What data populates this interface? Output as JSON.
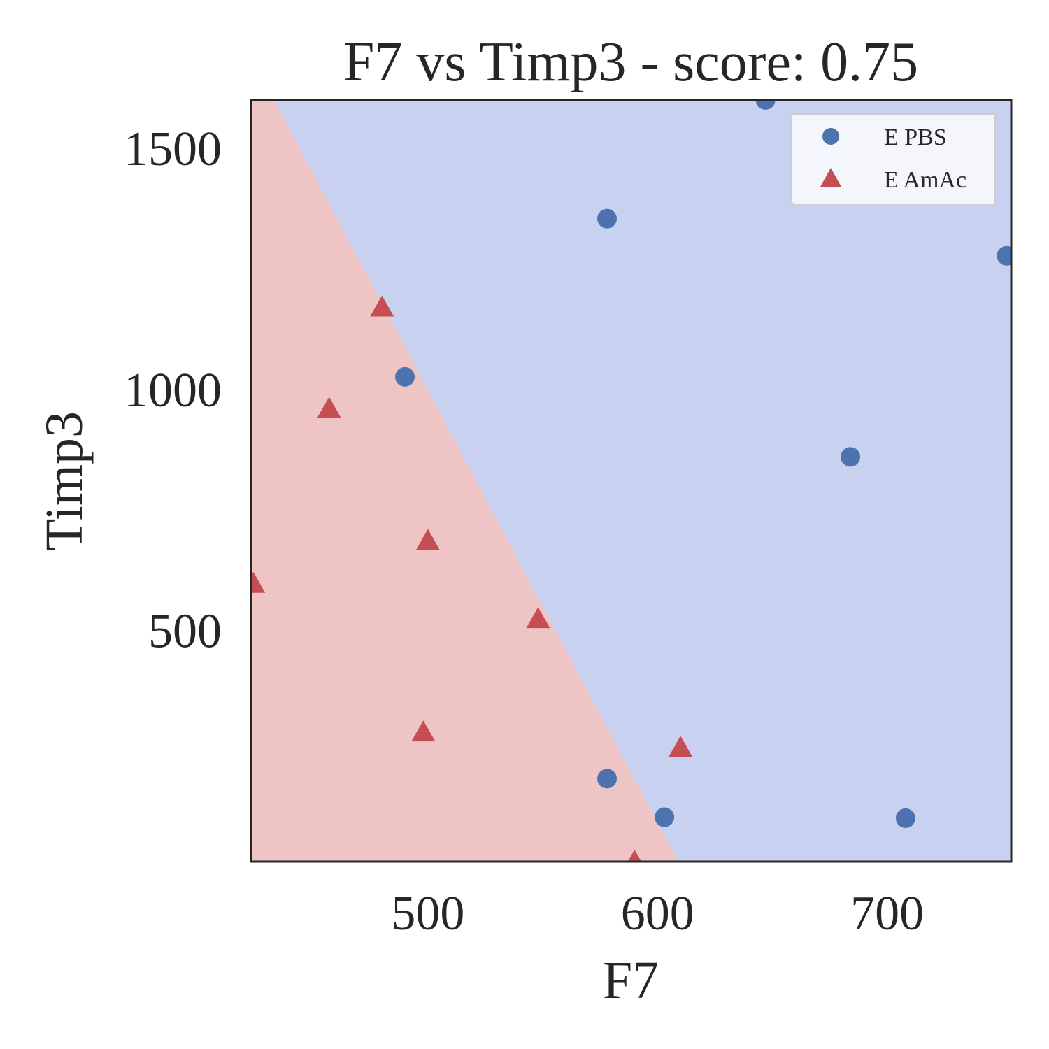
{
  "chart_data": {
    "type": "scatter",
    "title": "F7 vs Timp3 - score: 0.75",
    "xlabel": "F7",
    "ylabel": "Timp3",
    "xlim": [
      423,
      754
    ],
    "ylim": [
      21,
      1600
    ],
    "xticks": [
      500,
      600,
      700
    ],
    "yticks": [
      500,
      1000,
      1500
    ],
    "grid": false,
    "legend_placement": "top-right",
    "decision_regions": {
      "boundary_line": [
        [
          433,
          1600
        ],
        [
          609,
          21
        ]
      ],
      "left_region_class": "E AmAc",
      "right_region_class": "E PBS",
      "left_region_color": "#eec4c4",
      "right_region_color": "#c9d1f1"
    },
    "series": [
      {
        "name": "E PBS",
        "marker": "circle",
        "color": "#4c72b0",
        "points": [
          [
            647,
            1600
          ],
          [
            578,
            1354
          ],
          [
            752,
            1277
          ],
          [
            490,
            1026
          ],
          [
            684,
            860
          ],
          [
            578,
            193
          ],
          [
            603,
            113
          ],
          [
            708,
            111
          ]
        ]
      },
      {
        "name": "E AmAc",
        "marker": "triangle",
        "color": "#c44e52",
        "points": [
          [
            480,
            1170
          ],
          [
            457,
            960
          ],
          [
            500,
            686
          ],
          [
            424,
            597
          ],
          [
            548,
            524
          ],
          [
            498,
            289
          ],
          [
            610,
            257
          ],
          [
            590,
            21
          ]
        ]
      }
    ]
  }
}
